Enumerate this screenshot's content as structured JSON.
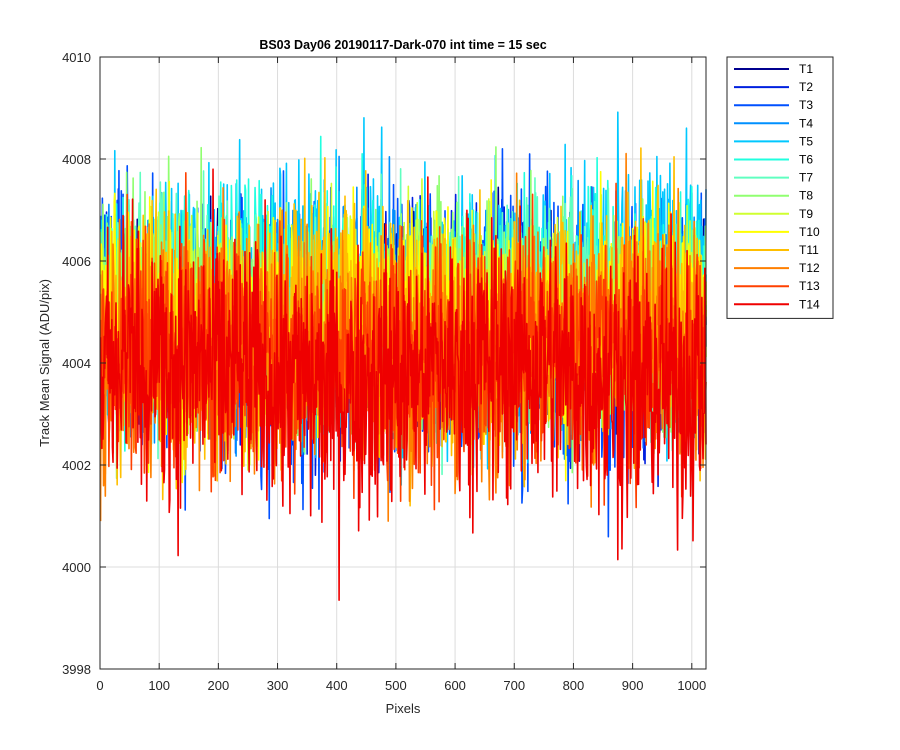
{
  "chart_data": {
    "type": "line",
    "title": "BS03 Day06 20190117-Dark-070 int time = 15 sec",
    "xlabel": "Pixels",
    "ylabel": "Track Mean Signal (ADU/pix)",
    "xlim": [
      0,
      1024
    ],
    "ylim": [
      3998,
      4010
    ],
    "x_ticks": [
      0,
      100,
      200,
      300,
      400,
      500,
      600,
      700,
      800,
      900,
      1000
    ],
    "y_ticks": [
      3998,
      4000,
      4002,
      4004,
      4006,
      4008,
      4010
    ],
    "grid": true,
    "legend_position": "outside-right-top",
    "series": [
      {
        "name": "T1",
        "color": "#00008f",
        "min": 4002.0,
        "max": 4007.8,
        "mean": 4004.8
      },
      {
        "name": "T2",
        "color": "#0020df",
        "min": 4000.5,
        "max": 4007.7,
        "mean": 4004.7
      },
      {
        "name": "T3",
        "color": "#0050ff",
        "min": 3999.9,
        "max": 4008.2,
        "mean": 4004.7
      },
      {
        "name": "T4",
        "color": "#0090ff",
        "min": 4001.6,
        "max": 4008.3,
        "mean": 4004.9
      },
      {
        "name": "T5",
        "color": "#00c8ff",
        "min": 4001.3,
        "max": 4009.6,
        "mean": 4005.2
      },
      {
        "name": "T6",
        "color": "#20ffdf",
        "min": 4001.8,
        "max": 4009.0,
        "mean": 4005.1
      },
      {
        "name": "T7",
        "color": "#60ffc0",
        "min": 4001.6,
        "max": 4008.2,
        "mean": 4004.9
      },
      {
        "name": "T8",
        "color": "#90ff70",
        "min": 4001.4,
        "max": 4008.4,
        "mean": 4004.9
      },
      {
        "name": "T9",
        "color": "#cfff30",
        "min": 4001.8,
        "max": 4008.0,
        "mean": 4004.8
      },
      {
        "name": "T10",
        "color": "#ffff00",
        "min": 4001.6,
        "max": 4008.1,
        "mean": 4004.8
      },
      {
        "name": "T11",
        "color": "#ffbf00",
        "min": 4001.2,
        "max": 4009.3,
        "mean": 4004.6
      },
      {
        "name": "T12",
        "color": "#ff7f00",
        "min": 4000.9,
        "max": 4008.5,
        "mean": 4004.3
      },
      {
        "name": "T13",
        "color": "#ff4000",
        "min": 4000.7,
        "max": 4008.1,
        "mean": 4004.1
      },
      {
        "name": "T14",
        "color": "#ef0000",
        "min": 3999.2,
        "max": 4007.8,
        "mean": 4003.8
      }
    ],
    "num_points": 1024
  }
}
